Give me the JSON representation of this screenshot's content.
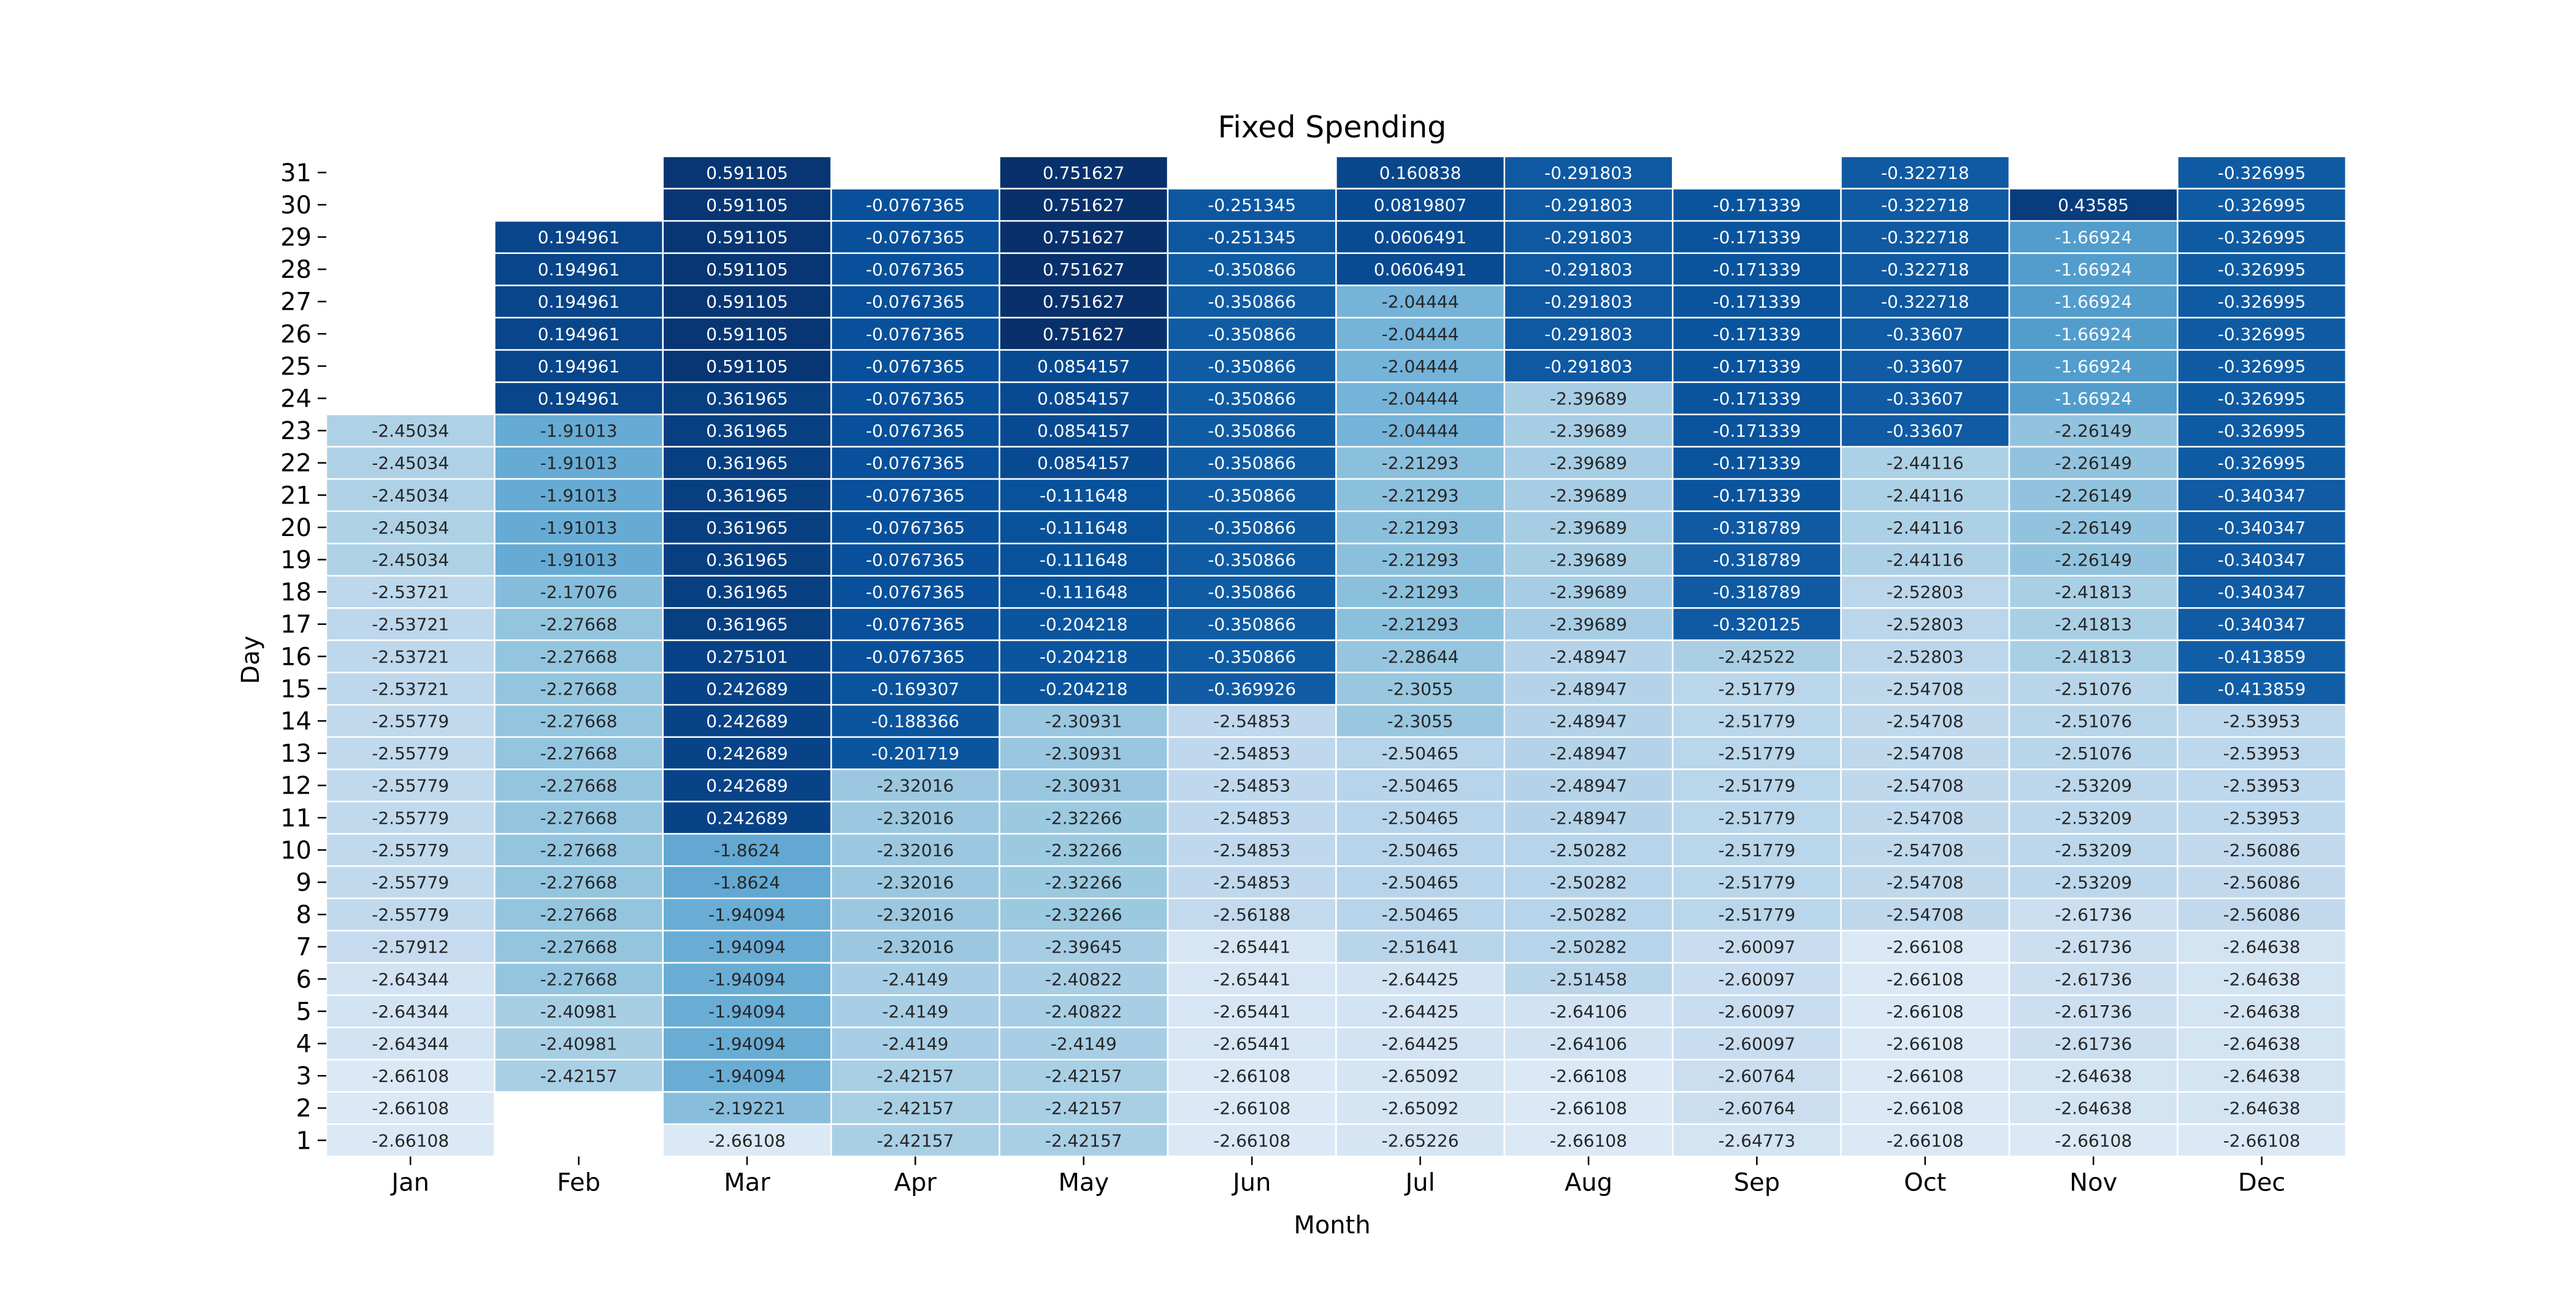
{
  "chart_data": {
    "type": "heatmap",
    "title": "Fixed Spending",
    "xlabel": "Month",
    "ylabel": "Day",
    "colormap": "Blues",
    "vmin": -2.66108,
    "vmax": 0.751627,
    "grid": false,
    "legend": "none",
    "months": [
      "Jan",
      "Feb",
      "Mar",
      "Apr",
      "May",
      "Jun",
      "Jul",
      "Aug",
      "Sep",
      "Oct",
      "Nov",
      "Dec"
    ],
    "days": [
      31,
      30,
      29,
      28,
      27,
      26,
      25,
      24,
      23,
      22,
      21,
      20,
      19,
      18,
      17,
      16,
      15,
      14,
      13,
      12,
      11,
      10,
      9,
      8,
      7,
      6,
      5,
      4,
      3,
      2,
      1
    ],
    "values": [
      [
        null,
        null,
        "0.591105",
        null,
        "0.751627",
        null,
        "0.160838",
        "-0.291803",
        null,
        "-0.322718",
        null,
        "-0.326995"
      ],
      [
        null,
        null,
        "0.591105",
        "-0.0767365",
        "0.751627",
        "-0.251345",
        "0.0819807",
        "-0.291803",
        "-0.171339",
        "-0.322718",
        "0.43585",
        "-0.326995"
      ],
      [
        null,
        "0.194961",
        "0.591105",
        "-0.0767365",
        "0.751627",
        "-0.251345",
        "0.0606491",
        "-0.291803",
        "-0.171339",
        "-0.322718",
        "-1.66924",
        "-0.326995"
      ],
      [
        null,
        "0.194961",
        "0.591105",
        "-0.0767365",
        "0.751627",
        "-0.350866",
        "0.0606491",
        "-0.291803",
        "-0.171339",
        "-0.322718",
        "-1.66924",
        "-0.326995"
      ],
      [
        null,
        "0.194961",
        "0.591105",
        "-0.0767365",
        "0.751627",
        "-0.350866",
        "-2.04444",
        "-0.291803",
        "-0.171339",
        "-0.322718",
        "-1.66924",
        "-0.326995"
      ],
      [
        null,
        "0.194961",
        "0.591105",
        "-0.0767365",
        "0.751627",
        "-0.350866",
        "-2.04444",
        "-0.291803",
        "-0.171339",
        "-0.33607",
        "-1.66924",
        "-0.326995"
      ],
      [
        null,
        "0.194961",
        "0.591105",
        "-0.0767365",
        "0.0854157",
        "-0.350866",
        "-2.04444",
        "-0.291803",
        "-0.171339",
        "-0.33607",
        "-1.66924",
        "-0.326995"
      ],
      [
        null,
        "0.194961",
        "0.361965",
        "-0.0767365",
        "0.0854157",
        "-0.350866",
        "-2.04444",
        "-2.39689",
        "-0.171339",
        "-0.33607",
        "-1.66924",
        "-0.326995"
      ],
      [
        "-2.45034",
        "-1.91013",
        "0.361965",
        "-0.0767365",
        "0.0854157",
        "-0.350866",
        "-2.04444",
        "-2.39689",
        "-0.171339",
        "-0.33607",
        "-2.26149",
        "-0.326995"
      ],
      [
        "-2.45034",
        "-1.91013",
        "0.361965",
        "-0.0767365",
        "0.0854157",
        "-0.350866",
        "-2.21293",
        "-2.39689",
        "-0.171339",
        "-2.44116",
        "-2.26149",
        "-0.326995"
      ],
      [
        "-2.45034",
        "-1.91013",
        "0.361965",
        "-0.0767365",
        "-0.111648",
        "-0.350866",
        "-2.21293",
        "-2.39689",
        "-0.171339",
        "-2.44116",
        "-2.26149",
        "-0.340347"
      ],
      [
        "-2.45034",
        "-1.91013",
        "0.361965",
        "-0.0767365",
        "-0.111648",
        "-0.350866",
        "-2.21293",
        "-2.39689",
        "-0.318789",
        "-2.44116",
        "-2.26149",
        "-0.340347"
      ],
      [
        "-2.45034",
        "-1.91013",
        "0.361965",
        "-0.0767365",
        "-0.111648",
        "-0.350866",
        "-2.21293",
        "-2.39689",
        "-0.318789",
        "-2.44116",
        "-2.26149",
        "-0.340347"
      ],
      [
        "-2.53721",
        "-2.17076",
        "0.361965",
        "-0.0767365",
        "-0.111648",
        "-0.350866",
        "-2.21293",
        "-2.39689",
        "-0.318789",
        "-2.52803",
        "-2.41813",
        "-0.340347"
      ],
      [
        "-2.53721",
        "-2.27668",
        "0.361965",
        "-0.0767365",
        "-0.204218",
        "-0.350866",
        "-2.21293",
        "-2.39689",
        "-0.320125",
        "-2.52803",
        "-2.41813",
        "-0.340347"
      ],
      [
        "-2.53721",
        "-2.27668",
        "0.275101",
        "-0.0767365",
        "-0.204218",
        "-0.350866",
        "-2.28644",
        "-2.48947",
        "-2.42522",
        "-2.52803",
        "-2.41813",
        "-0.413859"
      ],
      [
        "-2.53721",
        "-2.27668",
        "0.242689",
        "-0.169307",
        "-0.204218",
        "-0.369926",
        "-2.3055",
        "-2.48947",
        "-2.51779",
        "-2.54708",
        "-2.51076",
        "-0.413859"
      ],
      [
        "-2.55779",
        "-2.27668",
        "0.242689",
        "-0.188366",
        "-2.30931",
        "-2.54853",
        "-2.3055",
        "-2.48947",
        "-2.51779",
        "-2.54708",
        "-2.51076",
        "-2.53953"
      ],
      [
        "-2.55779",
        "-2.27668",
        "0.242689",
        "-0.201719",
        "-2.30931",
        "-2.54853",
        "-2.50465",
        "-2.48947",
        "-2.51779",
        "-2.54708",
        "-2.51076",
        "-2.53953"
      ],
      [
        "-2.55779",
        "-2.27668",
        "0.242689",
        "-2.32016",
        "-2.30931",
        "-2.54853",
        "-2.50465",
        "-2.48947",
        "-2.51779",
        "-2.54708",
        "-2.53209",
        "-2.53953"
      ],
      [
        "-2.55779",
        "-2.27668",
        "0.242689",
        "-2.32016",
        "-2.32266",
        "-2.54853",
        "-2.50465",
        "-2.48947",
        "-2.51779",
        "-2.54708",
        "-2.53209",
        "-2.53953"
      ],
      [
        "-2.55779",
        "-2.27668",
        "-1.8624",
        "-2.32016",
        "-2.32266",
        "-2.54853",
        "-2.50465",
        "-2.50282",
        "-2.51779",
        "-2.54708",
        "-2.53209",
        "-2.56086"
      ],
      [
        "-2.55779",
        "-2.27668",
        "-1.8624",
        "-2.32016",
        "-2.32266",
        "-2.54853",
        "-2.50465",
        "-2.50282",
        "-2.51779",
        "-2.54708",
        "-2.53209",
        "-2.56086"
      ],
      [
        "-2.55779",
        "-2.27668",
        "-1.94094",
        "-2.32016",
        "-2.32266",
        "-2.56188",
        "-2.50465",
        "-2.50282",
        "-2.51779",
        "-2.54708",
        "-2.61736",
        "-2.56086"
      ],
      [
        "-2.57912",
        "-2.27668",
        "-1.94094",
        "-2.32016",
        "-2.39645",
        "-2.65441",
        "-2.51641",
        "-2.50282",
        "-2.60097",
        "-2.66108",
        "-2.61736",
        "-2.64638"
      ],
      [
        "-2.64344",
        "-2.27668",
        "-1.94094",
        "-2.4149",
        "-2.40822",
        "-2.65441",
        "-2.64425",
        "-2.51458",
        "-2.60097",
        "-2.66108",
        "-2.61736",
        "-2.64638"
      ],
      [
        "-2.64344",
        "-2.40981",
        "-1.94094",
        "-2.4149",
        "-2.40822",
        "-2.65441",
        "-2.64425",
        "-2.64106",
        "-2.60097",
        "-2.66108",
        "-2.61736",
        "-2.64638"
      ],
      [
        "-2.64344",
        "-2.40981",
        "-1.94094",
        "-2.4149",
        "-2.4149",
        "-2.65441",
        "-2.64425",
        "-2.64106",
        "-2.60097",
        "-2.66108",
        "-2.61736",
        "-2.64638"
      ],
      [
        "-2.66108",
        "-2.42157",
        "-1.94094",
        "-2.42157",
        "-2.42157",
        "-2.66108",
        "-2.65092",
        "-2.66108",
        "-2.60764",
        "-2.66108",
        "-2.64638",
        "-2.64638"
      ],
      [
        "-2.66108",
        null,
        "-2.19221",
        "-2.42157",
        "-2.42157",
        "-2.66108",
        "-2.65092",
        "-2.66108",
        "-2.60764",
        "-2.66108",
        "-2.64638",
        "-2.64638"
      ],
      [
        "-2.66108",
        null,
        "-2.66108",
        "-2.42157",
        "-2.42157",
        "-2.66108",
        "-2.65226",
        "-2.66108",
        "-2.64773",
        "-2.66108",
        "-2.66108",
        "-2.66108"
      ]
    ]
  }
}
